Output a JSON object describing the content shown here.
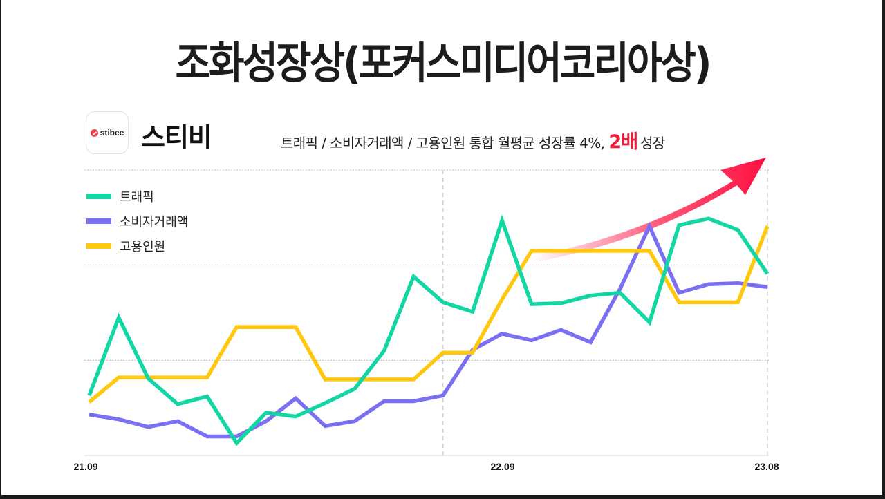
{
  "title": "조화성장상(포커스미디어코리아상)",
  "brand": {
    "logo_icon": "stibee-logo-icon",
    "logo_word": "stibee",
    "name": "스티비"
  },
  "headline": {
    "prefix": "트래픽 / 소비자거래액 / 고용인원 통합 월평균 성장률 4%,",
    "highlight": "2배",
    "suffix": "성장",
    "highlight_color": "#ee1c3a"
  },
  "colors": {
    "traffic": "#12d6a3",
    "transactions": "#7b6ff2",
    "employment": "#ffc80f",
    "arrow": "#ff1040",
    "grid": "#bdbdbd"
  },
  "legend": [
    {
      "label": "트래픽",
      "color": "#12d6a3"
    },
    {
      "label": "소비자거래액",
      "color": "#7b6ff2"
    },
    {
      "label": "고용인원",
      "color": "#ffc80f"
    }
  ],
  "x_ticks": [
    {
      "label": "21.09",
      "index": 0
    },
    {
      "label": "22.09",
      "index": 12
    },
    {
      "label": "23.08",
      "index": 23
    }
  ],
  "chart_data": {
    "type": "line",
    "title": "조화성장상(포커스미디어코리아상)",
    "subtitle": "트래픽 / 소비자거래액 / 고용인원 통합 월평균 성장률 4%, 2배 성장",
    "xlabel": "",
    "ylabel": "",
    "x": [
      "21.09",
      "21.10",
      "21.11",
      "21.12",
      "22.01",
      "22.02",
      "22.03",
      "22.04",
      "22.05",
      "22.06",
      "22.07",
      "22.08",
      "22.09",
      "22.10",
      "22.11",
      "22.12",
      "23.01",
      "23.02",
      "23.03",
      "23.04",
      "23.05",
      "23.06",
      "23.07",
      "23.08"
    ],
    "x_tick_labels_shown": [
      "21.09",
      "22.09",
      "23.08"
    ],
    "ylim": [
      0,
      3
    ],
    "y_ticks_labeled": false,
    "grid": {
      "horizontal": [
        1,
        2,
        3
      ],
      "vertical_dashed_at": [
        "22.09",
        "23.08"
      ]
    },
    "legend_position": "upper-left",
    "series": [
      {
        "name": "트래픽",
        "color": "#12d6a3",
        "values": [
          0.63,
          1.45,
          0.81,
          0.54,
          0.62,
          0.13,
          0.45,
          0.41,
          0.55,
          0.7,
          1.1,
          1.88,
          1.61,
          1.51,
          2.47,
          1.59,
          1.6,
          1.68,
          1.71,
          1.4,
          2.42,
          2.49,
          2.37,
          1.91
        ]
      },
      {
        "name": "소비자거래액",
        "color": "#7b6ff2",
        "values": [
          0.43,
          0.38,
          0.3,
          0.36,
          0.2,
          0.2,
          0.36,
          0.6,
          0.31,
          0.36,
          0.57,
          0.57,
          0.63,
          1.11,
          1.28,
          1.21,
          1.32,
          1.19,
          1.75,
          2.41,
          1.71,
          1.8,
          1.81,
          1.77
        ]
      },
      {
        "name": "고용인원",
        "color": "#ffc80f",
        "values": [
          0.56,
          0.82,
          0.82,
          0.82,
          0.82,
          1.35,
          1.35,
          1.35,
          0.8,
          0.8,
          0.8,
          0.8,
          1.08,
          1.08,
          1.64,
          2.15,
          2.15,
          2.15,
          2.15,
          2.15,
          1.61,
          1.61,
          1.61,
          2.41
        ]
      }
    ],
    "annotations": [
      {
        "type": "arrow",
        "description": "red gradient upward growth arrow",
        "from_x": "22.10",
        "to_x": "23.08"
      }
    ]
  }
}
